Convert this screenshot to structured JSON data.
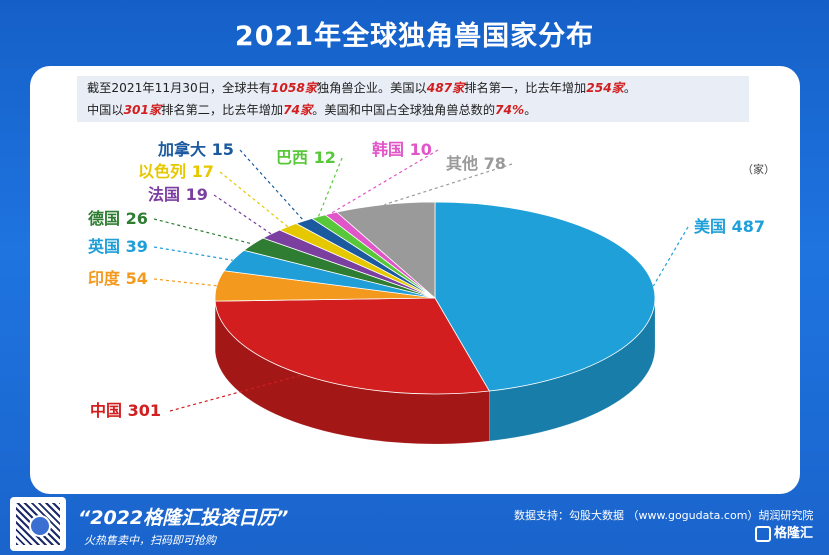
{
  "title": "2021年全球独角兽国家分布",
  "note": {
    "line1_a": "截至2021年11月30日，全球共有",
    "line1_b": "1058家",
    "line1_c": "独角兽企业。美国以",
    "line1_d": "487家",
    "line1_e": "排名第一，比去年增加",
    "line1_f": "254家",
    "line1_g": "。",
    "line2_a": "中国以",
    "line2_b": "301家",
    "line2_c": "排名第二，比去年增加",
    "line2_d": "74家",
    "line2_e": "。美国和中国占全球独角兽总数的",
    "line2_f": "74%",
    "line2_g": "。"
  },
  "unit": "（家）",
  "colors": {
    "background": "#1a6ad8",
    "highlight": "#d21e1e"
  },
  "chart_data": {
    "type": "pie",
    "title": "2021年全球独角兽国家分布",
    "unit": "（家）",
    "slices": [
      {
        "name": "美国",
        "value": 487,
        "label": "美国 487",
        "color": "#1fa0d8"
      },
      {
        "name": "中国",
        "value": 301,
        "label": "中国 301",
        "color": "#d21e1e"
      },
      {
        "name": "印度",
        "value": 54,
        "label": "印度 54",
        "color": "#f39a1e"
      },
      {
        "name": "英国",
        "value": 39,
        "label": "英国 39",
        "color": "#1f9ed8"
      },
      {
        "name": "德国",
        "value": 26,
        "label": "德国 26",
        "color": "#2e7d32"
      },
      {
        "name": "法国",
        "value": 19,
        "label": "法国 19",
        "color": "#7b3fa0"
      },
      {
        "name": "以色列",
        "value": 17,
        "label": "以色列 17",
        "color": "#e6c800"
      },
      {
        "name": "加拿大",
        "value": 15,
        "label": "加拿大 15",
        "color": "#1c5aa0"
      },
      {
        "name": "巴西",
        "value": 12,
        "label": "巴西 12",
        "color": "#58c83a"
      },
      {
        "name": "韩国",
        "value": 10,
        "label": "韩国 10",
        "color": "#e055c8"
      },
      {
        "name": "其他",
        "value": 78,
        "label": "其他 78",
        "color": "#9a9a9a"
      }
    ]
  },
  "footer": {
    "title": "“2022格隆汇投资日历”",
    "subtitle": "火热售卖中，扫码即可抢购",
    "source": "数据支持：勾股大数据 （www.gogudata.com）胡润研究院",
    "logo": "格隆汇"
  }
}
